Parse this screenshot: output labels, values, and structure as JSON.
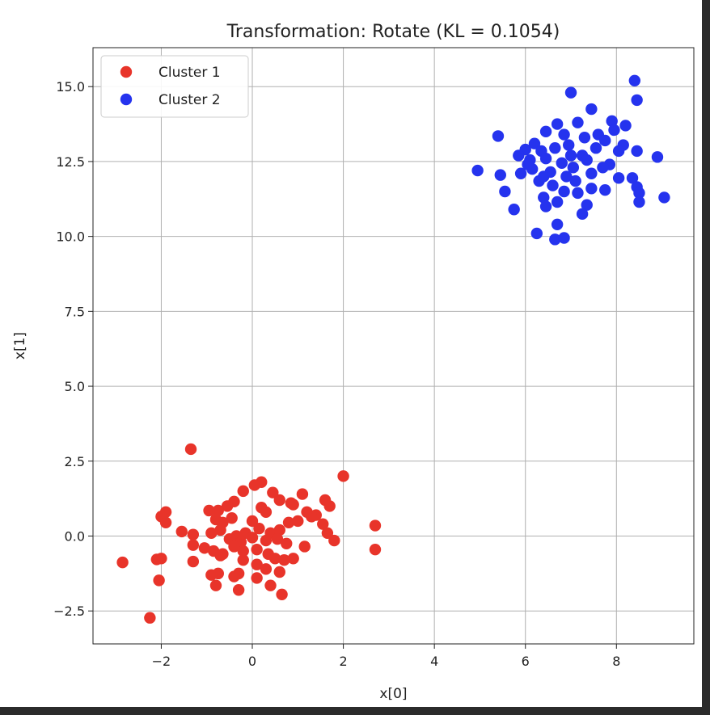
{
  "chart_data": {
    "type": "scatter",
    "title": "Transformation: Rotate (KL = 0.1054)",
    "xlabel": "x[0]",
    "ylabel": "x[1]",
    "xlim": [
      -3.5,
      9.7
    ],
    "ylim": [
      -3.6,
      16.3
    ],
    "xticks": [
      -2,
      0,
      2,
      4,
      6,
      8
    ],
    "xtick_labels": [
      "−2",
      "0",
      "2",
      "4",
      "6",
      "8"
    ],
    "yticks": [
      -2.5,
      0.0,
      2.5,
      5.0,
      7.5,
      10.0,
      12.5,
      15.0
    ],
    "ytick_labels": [
      "−2.5",
      "0.0",
      "2.5",
      "5.0",
      "7.5",
      "10.0",
      "12.5",
      "15.0"
    ],
    "grid": true,
    "legend_position": "top-left",
    "series": [
      {
        "name": "Cluster 1",
        "color": "#e8342a",
        "points": [
          [
            -1.35,
            2.9
          ],
          [
            2.0,
            2.0
          ],
          [
            0.2,
            1.8
          ],
          [
            0.05,
            1.7
          ],
          [
            -0.2,
            1.5
          ],
          [
            0.45,
            1.45
          ],
          [
            -0.4,
            1.15
          ],
          [
            1.1,
            1.4
          ],
          [
            0.6,
            1.2
          ],
          [
            0.85,
            1.1
          ],
          [
            1.6,
            1.2
          ],
          [
            1.7,
            1.0
          ],
          [
            -0.55,
            1.0
          ],
          [
            0.2,
            0.95
          ],
          [
            0.3,
            0.8
          ],
          [
            -0.75,
            0.85
          ],
          [
            -0.95,
            0.85
          ],
          [
            -1.9,
            0.8
          ],
          [
            -2.0,
            0.65
          ],
          [
            -0.45,
            0.6
          ],
          [
            -0.8,
            0.55
          ],
          [
            -0.65,
            0.45
          ],
          [
            0.0,
            0.5
          ],
          [
            0.8,
            0.45
          ],
          [
            1.0,
            0.5
          ],
          [
            1.2,
            0.8
          ],
          [
            1.4,
            0.7
          ],
          [
            -1.9,
            0.45
          ],
          [
            1.55,
            0.4
          ],
          [
            -1.55,
            0.15
          ],
          [
            -1.3,
            0.05
          ],
          [
            -0.9,
            0.1
          ],
          [
            -0.7,
            0.2
          ],
          [
            -0.35,
            0.0
          ],
          [
            -0.15,
            0.1
          ],
          [
            0.15,
            0.25
          ],
          [
            0.4,
            0.1
          ],
          [
            0.6,
            0.2
          ],
          [
            1.65,
            0.1
          ],
          [
            1.8,
            -0.15
          ],
          [
            -0.5,
            -0.1
          ],
          [
            -0.25,
            -0.2
          ],
          [
            0.0,
            -0.05
          ],
          [
            0.3,
            -0.15
          ],
          [
            0.55,
            -0.1
          ],
          [
            0.75,
            -0.25
          ],
          [
            -1.3,
            -0.3
          ],
          [
            -1.05,
            -0.4
          ],
          [
            -0.85,
            -0.5
          ],
          [
            -0.65,
            -0.6
          ],
          [
            -0.4,
            -0.35
          ],
          [
            -0.2,
            -0.5
          ],
          [
            0.1,
            -0.45
          ],
          [
            0.35,
            -0.6
          ],
          [
            0.5,
            -0.75
          ],
          [
            0.7,
            -0.8
          ],
          [
            0.9,
            -0.75
          ],
          [
            1.15,
            -0.35
          ],
          [
            -2.85,
            -0.88
          ],
          [
            -2.1,
            -0.78
          ],
          [
            -2.0,
            -0.75
          ],
          [
            -1.3,
            -0.85
          ],
          [
            -0.7,
            -0.65
          ],
          [
            -0.2,
            -0.8
          ],
          [
            0.1,
            -0.95
          ],
          [
            0.3,
            -1.1
          ],
          [
            0.6,
            -1.2
          ],
          [
            -0.75,
            -1.25
          ],
          [
            -0.9,
            -1.3
          ],
          [
            -0.3,
            -1.25
          ],
          [
            0.1,
            -1.4
          ],
          [
            -0.4,
            -1.35
          ],
          [
            -0.8,
            -1.65
          ],
          [
            0.4,
            -1.65
          ],
          [
            -0.3,
            -1.8
          ],
          [
            0.65,
            -1.95
          ],
          [
            -2.05,
            -1.48
          ],
          [
            -2.25,
            -2.73
          ],
          [
            2.7,
            0.35
          ],
          [
            2.7,
            -0.45
          ],
          [
            0.9,
            1.05
          ],
          [
            1.3,
            0.65
          ]
        ]
      },
      {
        "name": "Cluster 2",
        "color": "#2533ee",
        "points": [
          [
            8.4,
            15.2
          ],
          [
            7.0,
            14.8
          ],
          [
            8.45,
            14.55
          ],
          [
            7.45,
            14.25
          ],
          [
            7.9,
            13.85
          ],
          [
            6.7,
            13.75
          ],
          [
            7.15,
            13.8
          ],
          [
            8.2,
            13.7
          ],
          [
            5.4,
            13.35
          ],
          [
            6.45,
            13.5
          ],
          [
            6.85,
            13.4
          ],
          [
            7.3,
            13.3
          ],
          [
            7.6,
            13.4
          ],
          [
            7.95,
            13.55
          ],
          [
            8.15,
            13.05
          ],
          [
            8.45,
            12.85
          ],
          [
            6.0,
            12.9
          ],
          [
            6.2,
            13.1
          ],
          [
            6.35,
            12.85
          ],
          [
            6.65,
            12.95
          ],
          [
            6.95,
            13.05
          ],
          [
            7.25,
            12.7
          ],
          [
            7.55,
            12.95
          ],
          [
            7.75,
            13.2
          ],
          [
            5.85,
            12.7
          ],
          [
            6.1,
            12.55
          ],
          [
            6.45,
            12.6
          ],
          [
            6.8,
            12.45
          ],
          [
            7.05,
            12.3
          ],
          [
            7.35,
            12.55
          ],
          [
            7.85,
            12.4
          ],
          [
            8.05,
            12.85
          ],
          [
            8.9,
            12.65
          ],
          [
            4.95,
            12.2
          ],
          [
            5.45,
            12.05
          ],
          [
            5.9,
            12.1
          ],
          [
            6.15,
            12.25
          ],
          [
            6.55,
            12.15
          ],
          [
            6.9,
            12.0
          ],
          [
            7.1,
            11.85
          ],
          [
            7.45,
            12.1
          ],
          [
            7.7,
            12.3
          ],
          [
            8.05,
            11.95
          ],
          [
            8.35,
            11.95
          ],
          [
            6.3,
            11.85
          ],
          [
            6.6,
            11.7
          ],
          [
            6.85,
            11.5
          ],
          [
            7.15,
            11.45
          ],
          [
            7.45,
            11.6
          ],
          [
            7.75,
            11.55
          ],
          [
            8.45,
            11.65
          ],
          [
            5.55,
            11.5
          ],
          [
            6.4,
            11.3
          ],
          [
            6.7,
            11.15
          ],
          [
            7.35,
            11.05
          ],
          [
            8.5,
            11.45
          ],
          [
            8.5,
            11.15
          ],
          [
            9.05,
            11.3
          ],
          [
            6.45,
            11.0
          ],
          [
            5.75,
            10.9
          ],
          [
            7.25,
            10.75
          ],
          [
            6.7,
            10.4
          ],
          [
            6.25,
            10.1
          ],
          [
            6.65,
            9.9
          ],
          [
            6.85,
            9.95
          ],
          [
            6.05,
            12.4
          ],
          [
            7.0,
            12.7
          ],
          [
            6.4,
            12.0
          ]
        ]
      }
    ]
  }
}
